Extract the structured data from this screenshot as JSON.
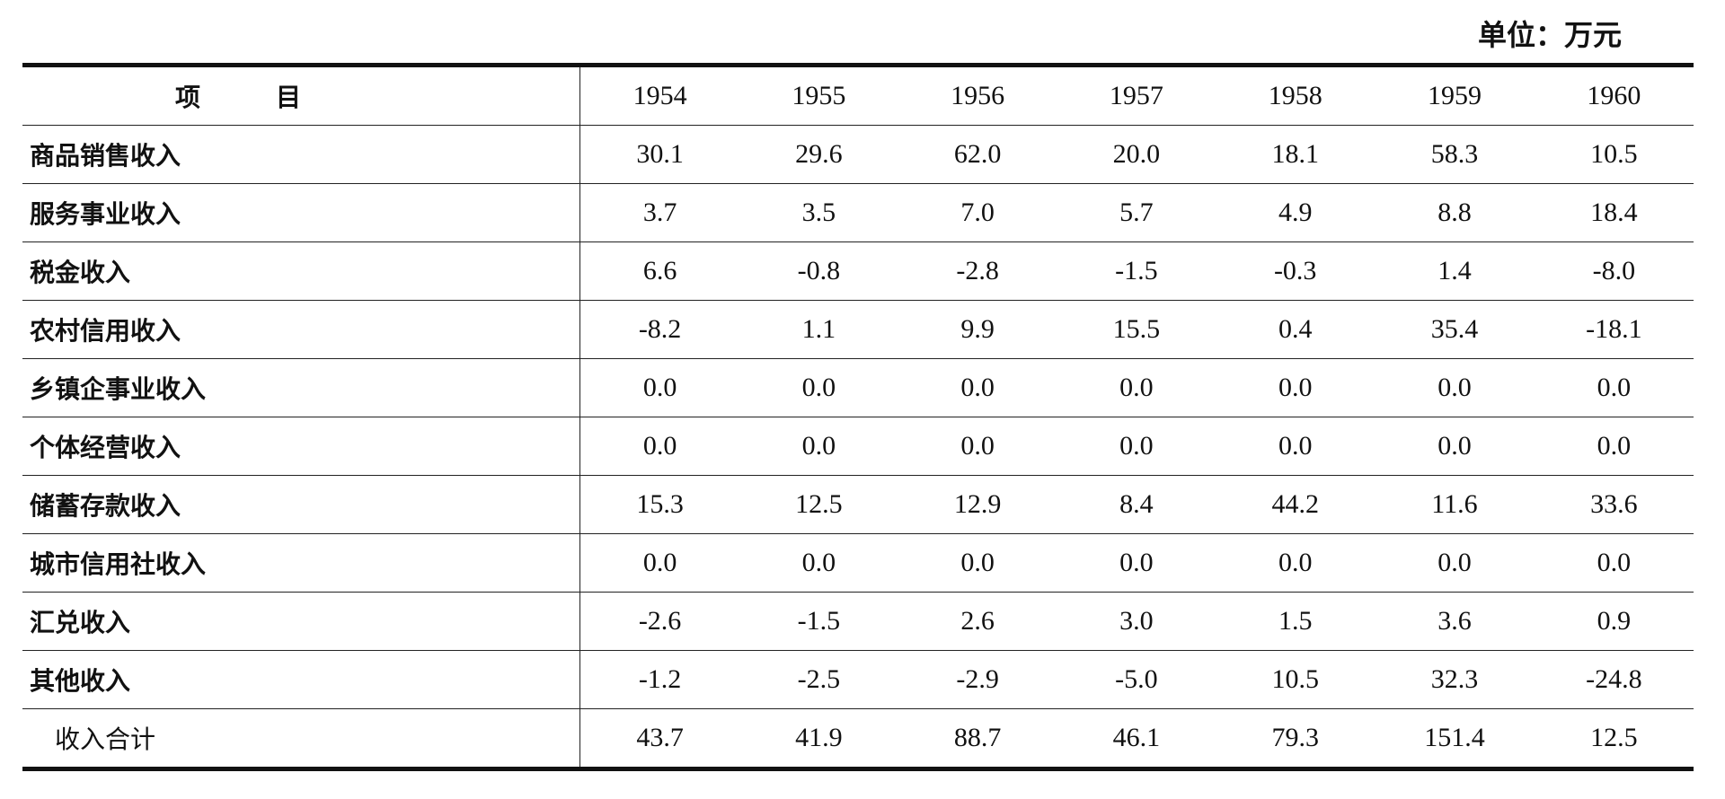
{
  "unit": "单位：万元",
  "table": {
    "header": [
      "项　　　目",
      "1954",
      "1955",
      "1956",
      "1957",
      "1958",
      "1959",
      "1960"
    ],
    "rows": [
      [
        "商品销售收入",
        "30.1",
        "29.6",
        "62.0",
        "20.0",
        "18.1",
        "58.3",
        "10.5"
      ],
      [
        "服务事业收入",
        "3.7",
        "3.5",
        "7.0",
        "5.7",
        "4.9",
        "8.8",
        "18.4"
      ],
      [
        "税金收入",
        "6.6",
        "-0.8",
        "-2.8",
        "-1.5",
        "-0.3",
        "1.4",
        "-8.0"
      ],
      [
        "农村信用收入",
        "-8.2",
        "1.1",
        "9.9",
        "15.5",
        "0.4",
        "35.4",
        "-18.1"
      ],
      [
        "乡镇企事业收入",
        "0.0",
        "0.0",
        "0.0",
        "0.0",
        "0.0",
        "0.0",
        "0.0"
      ],
      [
        "个体经营收入",
        "0.0",
        "0.0",
        "0.0",
        "0.0",
        "0.0",
        "0.0",
        "0.0"
      ],
      [
        "储蓄存款收入",
        "15.3",
        "12.5",
        "12.9",
        "8.4",
        "44.2",
        "11.6",
        "33.6"
      ],
      [
        "城市信用社收入",
        "0.0",
        "0.0",
        "0.0",
        "0.0",
        "0.0",
        "0.0",
        "0.0"
      ],
      [
        "汇兑收入",
        "-2.6",
        "-1.5",
        "2.6",
        "3.0",
        "1.5",
        "3.6",
        "0.9"
      ],
      [
        "其他收入",
        "-1.2",
        "-2.5",
        "-2.9",
        "-5.0",
        "10.5",
        "32.3",
        "-24.8"
      ],
      [
        "收入合计",
        "43.7",
        "41.9",
        "88.7",
        "46.1",
        "79.3",
        "151.4",
        "12.5"
      ]
    ]
  }
}
